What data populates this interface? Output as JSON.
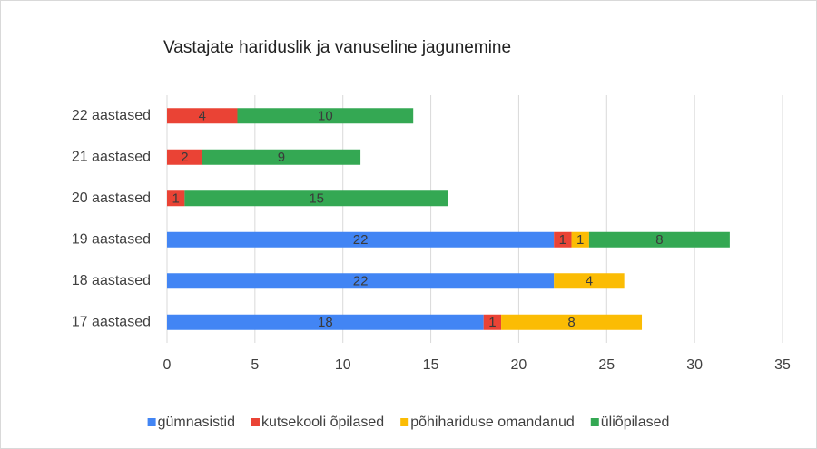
{
  "chart_data": {
    "type": "stacked-barh",
    "title": "Vastajate hariduslik ja vanuseline jagunemine",
    "categories": [
      "22 aastased",
      "21 aastased",
      "20 aastased",
      "19 aastased",
      "18 aastased",
      "17 aastased"
    ],
    "series": [
      {
        "name": "gümnasistid",
        "color": "#4285f4",
        "values": [
          0,
          0,
          0,
          22,
          22,
          18
        ]
      },
      {
        "name": "kutsekooli õpilased",
        "color": "#ea4335",
        "values": [
          4,
          2,
          1,
          1,
          0,
          1
        ]
      },
      {
        "name": "põhihariduse omandanud",
        "color": "#fbbc04",
        "values": [
          0,
          0,
          0,
          1,
          4,
          8
        ]
      },
      {
        "name": "üliõpilased",
        "color": "#34a853",
        "values": [
          10,
          9,
          15,
          8,
          0,
          0
        ]
      }
    ],
    "xlim": [
      0,
      35
    ],
    "xticks": [
      0,
      5,
      10,
      15,
      20,
      25,
      30,
      35
    ],
    "grid": true,
    "legend": "bottom"
  }
}
